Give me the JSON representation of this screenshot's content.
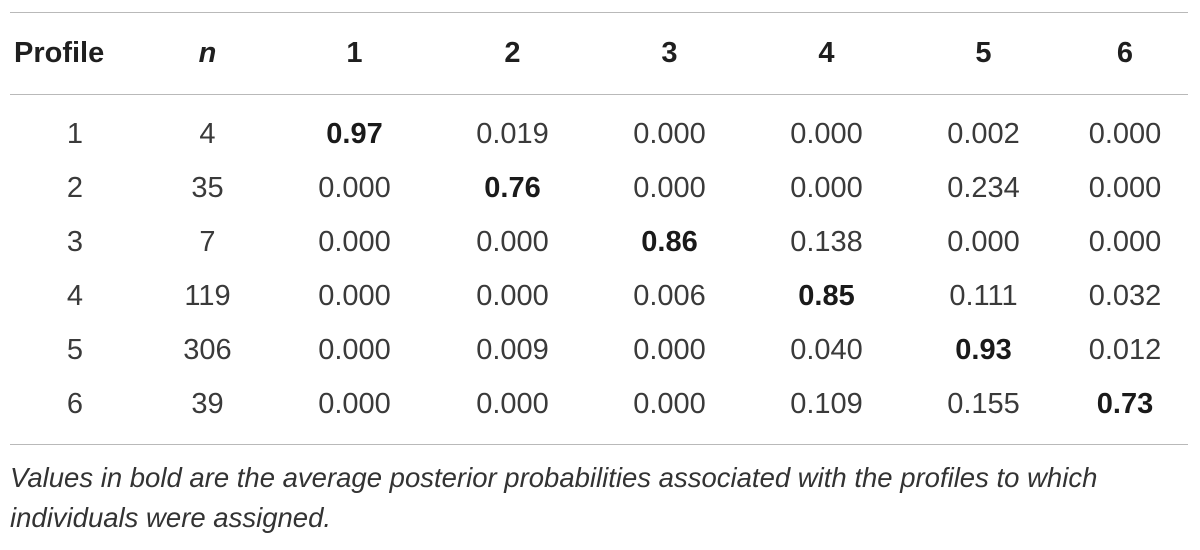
{
  "table": {
    "headers": [
      "Profile",
      "n",
      "1",
      "2",
      "3",
      "4",
      "5",
      "6"
    ],
    "rows": [
      {
        "profile": "1",
        "n": "4",
        "values": [
          "0.97",
          "0.019",
          "0.000",
          "0.000",
          "0.002",
          "0.000"
        ],
        "bold_index": 0
      },
      {
        "profile": "2",
        "n": "35",
        "values": [
          "0.000",
          "0.76",
          "0.000",
          "0.000",
          "0.234",
          "0.000"
        ],
        "bold_index": 1
      },
      {
        "profile": "3",
        "n": "7",
        "values": [
          "0.000",
          "0.000",
          "0.86",
          "0.138",
          "0.000",
          "0.000"
        ],
        "bold_index": 2
      },
      {
        "profile": "4",
        "n": "119",
        "values": [
          "0.000",
          "0.000",
          "0.006",
          "0.85",
          "0.111",
          "0.032"
        ],
        "bold_index": 3
      },
      {
        "profile": "5",
        "n": "306",
        "values": [
          "0.000",
          "0.009",
          "0.000",
          "0.040",
          "0.93",
          "0.012"
        ],
        "bold_index": 4
      },
      {
        "profile": "6",
        "n": "39",
        "values": [
          "0.000",
          "0.000",
          "0.000",
          "0.109",
          "0.155",
          "0.73"
        ],
        "bold_index": 5
      }
    ]
  },
  "footnote": "Values in bold are the average posterior probabilities associated with the profiles to which individuals were assigned."
}
